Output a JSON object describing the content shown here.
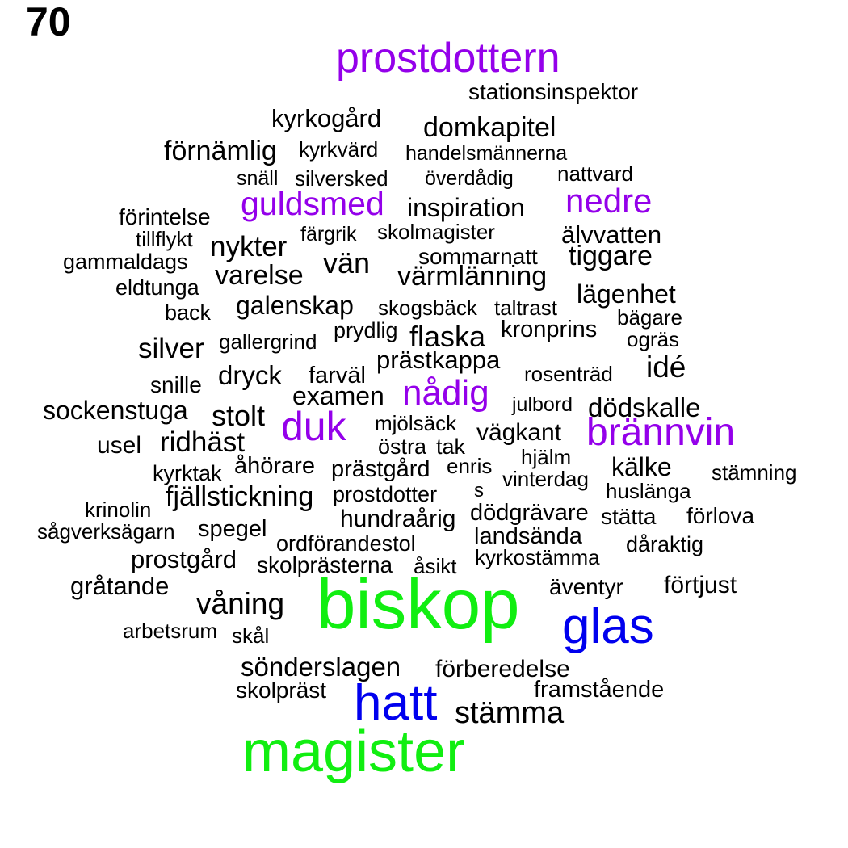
{
  "page_number": "70",
  "palette": {
    "black": "#000000",
    "purple": "#9400ea",
    "blue": "#0000ee",
    "green": "#11ee11"
  },
  "words": [
    {
      "text": "prostdottern",
      "color": "purple"
    },
    {
      "text": "stationsinspektor",
      "color": "black"
    },
    {
      "text": "kyrkogård",
      "color": "black"
    },
    {
      "text": "domkapitel",
      "color": "black"
    },
    {
      "text": "förnämlig",
      "color": "black"
    },
    {
      "text": "kyrkvärd",
      "color": "black"
    },
    {
      "text": "handelsmännerna",
      "color": "black"
    },
    {
      "text": "snäll",
      "color": "black"
    },
    {
      "text": "silversked",
      "color": "black"
    },
    {
      "text": "överdådig",
      "color": "black"
    },
    {
      "text": "nattvard",
      "color": "black"
    },
    {
      "text": "guldsmed",
      "color": "purple"
    },
    {
      "text": "inspiration",
      "color": "black"
    },
    {
      "text": "nedre",
      "color": "purple"
    },
    {
      "text": "förintelse",
      "color": "black"
    },
    {
      "text": "tillflykt",
      "color": "black"
    },
    {
      "text": "färgrik",
      "color": "black"
    },
    {
      "text": "skolmagister",
      "color": "black"
    },
    {
      "text": "älvvatten",
      "color": "black"
    },
    {
      "text": "nykter",
      "color": "black"
    },
    {
      "text": "gammaldags",
      "color": "black"
    },
    {
      "text": "vän",
      "color": "black"
    },
    {
      "text": "sommarnatt",
      "color": "black"
    },
    {
      "text": "tiggare",
      "color": "black"
    },
    {
      "text": "varelse",
      "color": "black"
    },
    {
      "text": "värmlänning",
      "color": "black"
    },
    {
      "text": "eldtunga",
      "color": "black"
    },
    {
      "text": "lägenhet",
      "color": "black"
    },
    {
      "text": "galenskap",
      "color": "black"
    },
    {
      "text": "back",
      "color": "black"
    },
    {
      "text": "skogsbäck",
      "color": "black"
    },
    {
      "text": "taltrast",
      "color": "black"
    },
    {
      "text": "bägare",
      "color": "black"
    },
    {
      "text": "prydlig",
      "color": "black"
    },
    {
      "text": "flaska",
      "color": "black"
    },
    {
      "text": "kronprins",
      "color": "black"
    },
    {
      "text": "ogräs",
      "color": "black"
    },
    {
      "text": "silver",
      "color": "black"
    },
    {
      "text": "gallergrind",
      "color": "black"
    },
    {
      "text": "prästkappa",
      "color": "black"
    },
    {
      "text": "idé",
      "color": "black"
    },
    {
      "text": "dryck",
      "color": "black"
    },
    {
      "text": "farväl",
      "color": "black"
    },
    {
      "text": "rosenträd",
      "color": "black"
    },
    {
      "text": "snille",
      "color": "black"
    },
    {
      "text": "nådig",
      "color": "purple"
    },
    {
      "text": "examen",
      "color": "black"
    },
    {
      "text": "julbord",
      "color": "black"
    },
    {
      "text": "dödskalle",
      "color": "black"
    },
    {
      "text": "sockenstuga",
      "color": "black"
    },
    {
      "text": "stolt",
      "color": "black"
    },
    {
      "text": "duk",
      "color": "purple"
    },
    {
      "text": "mjölsäck",
      "color": "black"
    },
    {
      "text": "vägkant",
      "color": "black"
    },
    {
      "text": "brännvin",
      "color": "purple"
    },
    {
      "text": "usel",
      "color": "black"
    },
    {
      "text": "ridhäst",
      "color": "black"
    },
    {
      "text": "östra",
      "color": "black"
    },
    {
      "text": "tak",
      "color": "black"
    },
    {
      "text": "hjälm",
      "color": "black"
    },
    {
      "text": "kyrktak",
      "color": "black"
    },
    {
      "text": "åhörare",
      "color": "black"
    },
    {
      "text": "prästgård",
      "color": "black"
    },
    {
      "text": "enris",
      "color": "black"
    },
    {
      "text": "kälke",
      "color": "black"
    },
    {
      "text": "stämning",
      "color": "black"
    },
    {
      "text": "vinterdag",
      "color": "black"
    },
    {
      "text": "fjällstickning",
      "color": "black"
    },
    {
      "text": "prostdotter",
      "color": "black"
    },
    {
      "text": "s",
      "color": "black"
    },
    {
      "text": "huslänga",
      "color": "black"
    },
    {
      "text": "krinolin",
      "color": "black"
    },
    {
      "text": "hundraårig",
      "color": "black"
    },
    {
      "text": "dödgrävare",
      "color": "black"
    },
    {
      "text": "stätta",
      "color": "black"
    },
    {
      "text": "förlova",
      "color": "black"
    },
    {
      "text": "sågverksägarn",
      "color": "black"
    },
    {
      "text": "spegel",
      "color": "black"
    },
    {
      "text": "ordförandestol",
      "color": "black"
    },
    {
      "text": "landsända",
      "color": "black"
    },
    {
      "text": "dåraktig",
      "color": "black"
    },
    {
      "text": "prostgård",
      "color": "black"
    },
    {
      "text": "kyrkostämma",
      "color": "black"
    },
    {
      "text": "skolprästerna",
      "color": "black"
    },
    {
      "text": "åsikt",
      "color": "black"
    },
    {
      "text": "gråtande",
      "color": "black"
    },
    {
      "text": "äventyr",
      "color": "black"
    },
    {
      "text": "förtjust",
      "color": "black"
    },
    {
      "text": "biskop",
      "color": "green"
    },
    {
      "text": "våning",
      "color": "black"
    },
    {
      "text": "glas",
      "color": "blue"
    },
    {
      "text": "arbetsrum",
      "color": "black"
    },
    {
      "text": "skål",
      "color": "black"
    },
    {
      "text": "sönderslagen",
      "color": "black"
    },
    {
      "text": "förberedelse",
      "color": "black"
    },
    {
      "text": "skolpräst",
      "color": "black"
    },
    {
      "text": "hatt",
      "color": "blue"
    },
    {
      "text": "framstående",
      "color": "black"
    },
    {
      "text": "stämma",
      "color": "black"
    },
    {
      "text": "magister",
      "color": "green"
    }
  ]
}
